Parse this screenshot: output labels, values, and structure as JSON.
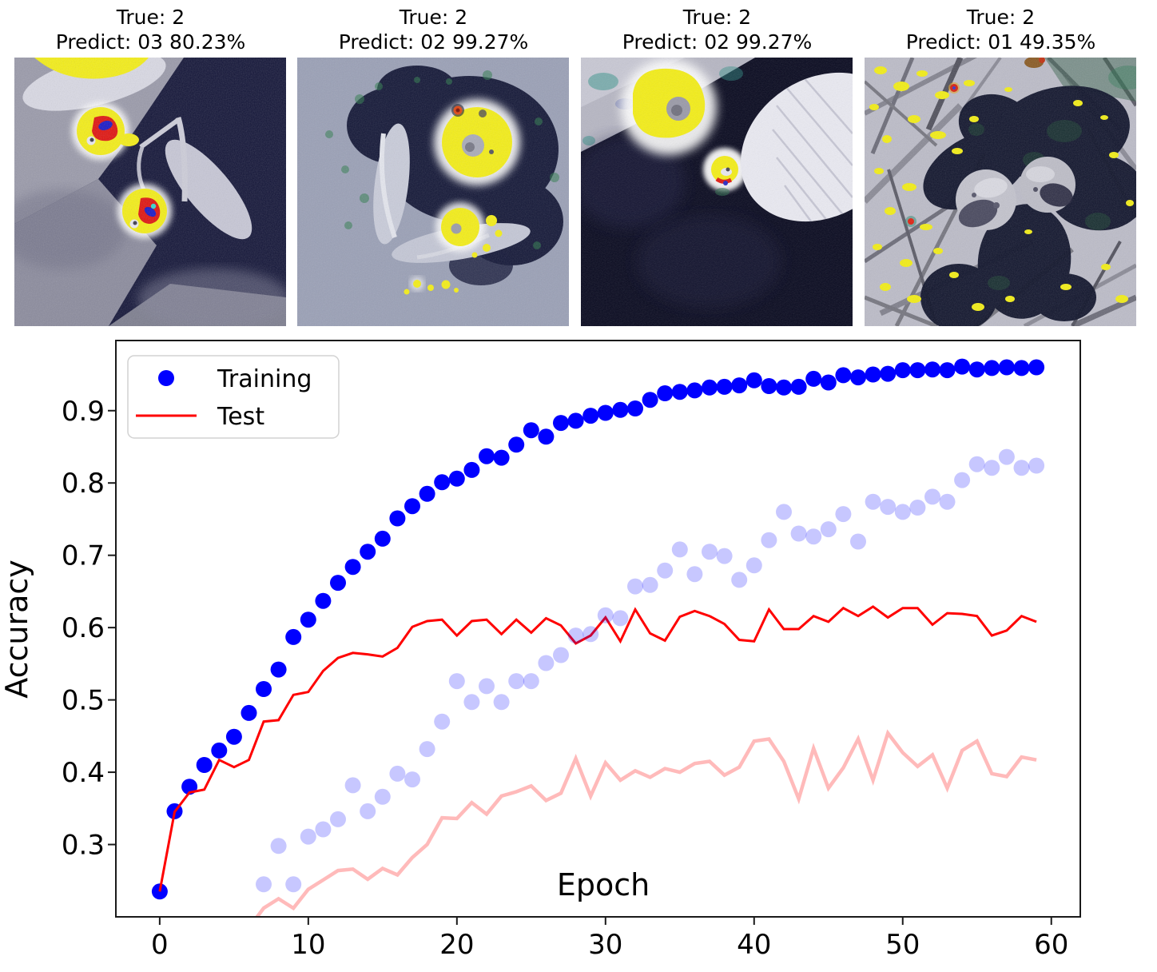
{
  "panels": [
    {
      "line1": "True: 2",
      "line2": "Predict: 03 80.23%"
    },
    {
      "line1": "True: 2",
      "line2": "Predict: 02 99.27%"
    },
    {
      "line1": "True: 2",
      "line2": "Predict: 02 99.27%"
    },
    {
      "line1": "True: 2",
      "line2": "Predict: 01 49.35%"
    }
  ],
  "chart_data": {
    "type": "scatter",
    "title": "",
    "xlabel": "Epoch",
    "ylabel": "Accuracy",
    "xlim": [
      -2.95,
      61.95
    ],
    "ylim": [
      0.2,
      0.997
    ],
    "grid": false,
    "xticks": {
      "values": [
        0,
        10,
        20,
        30,
        40,
        50,
        60
      ],
      "labels": [
        "0",
        "10",
        "20",
        "30",
        "40",
        "50",
        "60"
      ]
    },
    "yticks": {
      "values": [
        0.3,
        0.4,
        0.5,
        0.6,
        0.7,
        0.8,
        0.9
      ],
      "labels": [
        "0.3",
        "0.4",
        "0.5",
        "0.6",
        "0.7",
        "0.8",
        "0.9"
      ]
    },
    "legend": {
      "position": "upper left",
      "entries": [
        {
          "label": "Training",
          "marker": "dot",
          "color": "#0000ff"
        },
        {
          "label": "Test",
          "marker": "line",
          "color": "#ff0000"
        }
      ]
    },
    "colors": {
      "training_dot": "#0000ff",
      "test_line": "#ff0000",
      "faded_dot": "#c7c7ff",
      "faded_line": "#ffbaba"
    },
    "series": [
      {
        "id": "training",
        "legend_label": "Training",
        "style": "scatter",
        "color": "#0000ff",
        "opacity": 1,
        "marker_radius": 10,
        "x0": 0,
        "y": [
          0.235,
          0.346,
          0.38,
          0.41,
          0.43,
          0.449,
          0.482,
          0.515,
          0.542,
          0.587,
          0.611,
          0.637,
          0.662,
          0.684,
          0.705,
          0.723,
          0.751,
          0.768,
          0.785,
          0.801,
          0.806,
          0.818,
          0.837,
          0.835,
          0.853,
          0.873,
          0.864,
          0.883,
          0.886,
          0.893,
          0.897,
          0.901,
          0.903,
          0.915,
          0.924,
          0.926,
          0.928,
          0.932,
          0.933,
          0.935,
          0.942,
          0.934,
          0.932,
          0.933,
          0.944,
          0.939,
          0.949,
          0.946,
          0.95,
          0.951,
          0.956,
          0.956,
          0.957,
          0.956,
          0.961,
          0.957,
          0.959,
          0.96,
          0.959,
          0.96
        ]
      },
      {
        "id": "test",
        "legend_label": "Test",
        "style": "line",
        "color": "#ff0000",
        "opacity": 1,
        "line_width": 3,
        "x0": 0,
        "y": [
          0.235,
          0.345,
          0.372,
          0.376,
          0.417,
          0.407,
          0.417,
          0.47,
          0.472,
          0.507,
          0.511,
          0.54,
          0.558,
          0.565,
          0.563,
          0.56,
          0.572,
          0.601,
          0.609,
          0.611,
          0.589,
          0.609,
          0.611,
          0.591,
          0.611,
          0.593,
          0.613,
          0.603,
          0.578,
          0.589,
          0.614,
          0.581,
          0.625,
          0.592,
          0.582,
          0.615,
          0.623,
          0.616,
          0.605,
          0.583,
          0.581,
          0.625,
          0.598,
          0.598,
          0.616,
          0.608,
          0.627,
          0.616,
          0.629,
          0.614,
          0.627,
          0.627,
          0.604,
          0.62,
          0.619,
          0.616,
          0.589,
          0.596,
          0.616,
          0.608
        ]
      },
      {
        "id": "training-faded",
        "style": "scatter",
        "color": "#0000ff",
        "opacity": 0.22,
        "marker_radius": 10,
        "x0": 7,
        "y": [
          0.245,
          0.298,
          0.245,
          0.311,
          0.321,
          0.335,
          0.382,
          0.346,
          0.366,
          0.398,
          0.39,
          0.432,
          0.47,
          0.526,
          0.497,
          0.519,
          0.497,
          0.526,
          0.526,
          0.551,
          0.562,
          0.589,
          0.591,
          0.617,
          0.613,
          0.657,
          0.659,
          0.679,
          0.708,
          0.674,
          0.705,
          0.699,
          0.666,
          0.686,
          0.721,
          0.76,
          0.73,
          0.726,
          0.736,
          0.757,
          0.719,
          0.774,
          0.767,
          0.76,
          0.766,
          0.781,
          0.774,
          0.804,
          0.826,
          0.821,
          0.836,
          0.821,
          0.824
        ]
      },
      {
        "id": "test-faded",
        "style": "line",
        "color": "#ff0000",
        "opacity": 0.27,
        "line_width": 4.5,
        "x0": 6,
        "y": [
          0.185,
          0.212,
          0.225,
          0.212,
          0.238,
          0.251,
          0.264,
          0.266,
          0.252,
          0.267,
          0.258,
          0.282,
          0.3,
          0.337,
          0.336,
          0.358,
          0.342,
          0.367,
          0.373,
          0.381,
          0.361,
          0.371,
          0.419,
          0.367,
          0.413,
          0.389,
          0.402,
          0.393,
          0.405,
          0.4,
          0.412,
          0.415,
          0.396,
          0.407,
          0.443,
          0.446,
          0.415,
          0.363,
          0.433,
          0.378,
          0.406,
          0.446,
          0.389,
          0.454,
          0.427,
          0.408,
          0.424,
          0.378,
          0.43,
          0.443,
          0.398,
          0.394,
          0.421,
          0.417
        ]
      }
    ]
  }
}
